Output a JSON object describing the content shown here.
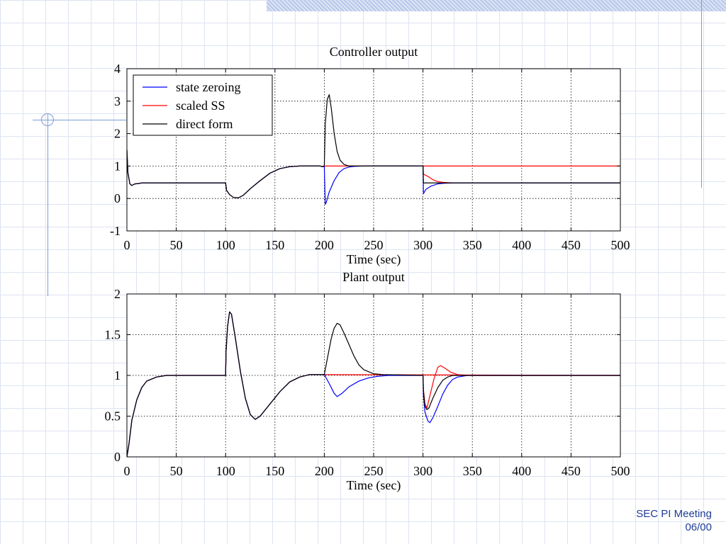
{
  "footer": {
    "line1": "SEC PI Meeting",
    "line2": "06/00"
  },
  "colors": {
    "state_zeroing": "#0000ff",
    "scaled_ss": "#ff0000",
    "direct_form": "#000000"
  },
  "chart_data": [
    {
      "type": "line",
      "title": "Controller output",
      "xlabel": "Time (sec)",
      "ylabel": "",
      "xlim": [
        0,
        500
      ],
      "ylim": [
        -1,
        4
      ],
      "xticks": [
        0,
        50,
        100,
        150,
        200,
        250,
        300,
        350,
        400,
        450,
        500
      ],
      "yticks": [
        -1,
        0,
        1,
        2,
        3,
        4
      ],
      "grid": true,
      "legend": {
        "position": "top-left"
      },
      "series": [
        {
          "name": "state zeroing",
          "color": "#0000ff",
          "points": [
            [
              0,
              1.5
            ],
            [
              1,
              0.8
            ],
            [
              3,
              0.45
            ],
            [
              5,
              0.4
            ],
            [
              8,
              0.45
            ],
            [
              12,
              0.46
            ],
            [
              15,
              0.48
            ],
            [
              100,
              0.48
            ],
            [
              101,
              0.25
            ],
            [
              104,
              0.12
            ],
            [
              108,
              0.03
            ],
            [
              113,
              0.02
            ],
            [
              118,
              0.1
            ],
            [
              125,
              0.3
            ],
            [
              135,
              0.55
            ],
            [
              145,
              0.78
            ],
            [
              155,
              0.92
            ],
            [
              165,
              0.98
            ],
            [
              175,
              1.0
            ],
            [
              196,
              1.0
            ],
            [
              198,
              0.98
            ],
            [
              200,
              0.99
            ],
            [
              201,
              -0.18
            ],
            [
              202,
              -0.12
            ],
            [
              205,
              0.2
            ],
            [
              210,
              0.55
            ],
            [
              215,
              0.8
            ],
            [
              220,
              0.92
            ],
            [
              225,
              0.97
            ],
            [
              230,
              0.99
            ],
            [
              240,
              1.0
            ],
            [
              300,
              1.0
            ],
            [
              300.5,
              0.15
            ],
            [
              303,
              0.28
            ],
            [
              308,
              0.38
            ],
            [
              315,
              0.45
            ],
            [
              322,
              0.47
            ],
            [
              335,
              0.48
            ],
            [
              500,
              0.48
            ]
          ]
        },
        {
          "name": "scaled SS",
          "color": "#ff0000",
          "points": [
            [
              0,
              1.5
            ],
            [
              1,
              0.8
            ],
            [
              3,
              0.45
            ],
            [
              5,
              0.4
            ],
            [
              8,
              0.45
            ],
            [
              12,
              0.46
            ],
            [
              15,
              0.48
            ],
            [
              100,
              0.48
            ],
            [
              101,
              0.25
            ],
            [
              104,
              0.12
            ],
            [
              108,
              0.03
            ],
            [
              113,
              0.02
            ],
            [
              118,
              0.1
            ],
            [
              125,
              0.3
            ],
            [
              135,
              0.55
            ],
            [
              145,
              0.78
            ],
            [
              155,
              0.92
            ],
            [
              165,
              0.98
            ],
            [
              175,
              1.0
            ],
            [
              196,
              1.0
            ],
            [
              198,
              0.98
            ],
            [
              200,
              0.99
            ],
            [
              201,
              1.0
            ],
            [
              500,
              1.0
            ]
          ]
        },
        {
          "name": "direct form",
          "color": "#000000",
          "points": [
            [
              0,
              1.5
            ],
            [
              1,
              0.8
            ],
            [
              3,
              0.45
            ],
            [
              5,
              0.4
            ],
            [
              8,
              0.45
            ],
            [
              12,
              0.46
            ],
            [
              15,
              0.48
            ],
            [
              100,
              0.48
            ],
            [
              101,
              0.25
            ],
            [
              104,
              0.12
            ],
            [
              108,
              0.03
            ],
            [
              113,
              0.02
            ],
            [
              118,
              0.1
            ],
            [
              125,
              0.3
            ],
            [
              135,
              0.55
            ],
            [
              145,
              0.78
            ],
            [
              155,
              0.92
            ],
            [
              165,
              0.98
            ],
            [
              175,
              1.0
            ],
            [
              196,
              1.0
            ],
            [
              198,
              0.98
            ],
            [
              200,
              1.0
            ],
            [
              201,
              2.3
            ],
            [
              203,
              3.05
            ],
            [
              205,
              3.2
            ],
            [
              207,
              2.8
            ],
            [
              210,
              2.0
            ],
            [
              213,
              1.45
            ],
            [
              216,
              1.18
            ],
            [
              220,
              1.05
            ],
            [
              225,
              1.0
            ],
            [
              300,
              1.0
            ],
            [
              300.5,
              0.48
            ],
            [
              500,
              0.48
            ]
          ]
        },
        {
          "name": "",
          "color": "#ff0000",
          "points": [
            [
              300,
              1.0
            ],
            [
              300.5,
              0.75
            ],
            [
              305,
              0.68
            ],
            [
              310,
              0.58
            ],
            [
              315,
              0.52
            ],
            [
              320,
              0.5
            ],
            [
              330,
              0.48
            ],
            [
              500,
              0.48
            ]
          ]
        }
      ]
    },
    {
      "type": "line",
      "title": "Plant output",
      "xlabel": "Time (sec)",
      "ylabel": "",
      "xlim": [
        0,
        500
      ],
      "ylim": [
        0,
        2
      ],
      "xticks": [
        0,
        50,
        100,
        150,
        200,
        250,
        300,
        350,
        400,
        450,
        500
      ],
      "yticks": [
        0,
        0.5,
        1,
        1.5,
        2
      ],
      "grid": true,
      "series": [
        {
          "name": "state zeroing",
          "color": "#0000ff",
          "points": [
            [
              0,
              0
            ],
            [
              2,
              0.15
            ],
            [
              5,
              0.45
            ],
            [
              10,
              0.7
            ],
            [
              15,
              0.85
            ],
            [
              20,
              0.93
            ],
            [
              30,
              0.98
            ],
            [
              40,
              1.0
            ],
            [
              100,
              1.0
            ],
            [
              100.5,
              1.3
            ],
            [
              102,
              1.6
            ],
            [
              104,
              1.78
            ],
            [
              106,
              1.75
            ],
            [
              110,
              1.45
            ],
            [
              115,
              1.05
            ],
            [
              120,
              0.72
            ],
            [
              125,
              0.52
            ],
            [
              130,
              0.46
            ],
            [
              135,
              0.5
            ],
            [
              145,
              0.65
            ],
            [
              155,
              0.8
            ],
            [
              165,
              0.92
            ],
            [
              175,
              0.98
            ],
            [
              185,
              1.01
            ],
            [
              200,
              1.01
            ],
            [
              205,
              0.9
            ],
            [
              210,
              0.78
            ],
            [
              213,
              0.74
            ],
            [
              218,
              0.78
            ],
            [
              225,
              0.86
            ],
            [
              235,
              0.93
            ],
            [
              245,
              0.97
            ],
            [
              255,
              0.99
            ],
            [
              265,
              1.0
            ],
            [
              300,
              1.0
            ],
            [
              300.5,
              0.75
            ],
            [
              302,
              0.55
            ],
            [
              305,
              0.44
            ],
            [
              307,
              0.42
            ],
            [
              310,
              0.48
            ],
            [
              315,
              0.62
            ],
            [
              320,
              0.77
            ],
            [
              325,
              0.88
            ],
            [
              330,
              0.95
            ],
            [
              335,
              0.98
            ],
            [
              340,
              0.99
            ],
            [
              345,
              1.0
            ],
            [
              500,
              1.0
            ]
          ]
        },
        {
          "name": "scaled SS",
          "color": "#ff0000",
          "points": [
            [
              0,
              0
            ],
            [
              2,
              0.15
            ],
            [
              5,
              0.45
            ],
            [
              10,
              0.7
            ],
            [
              15,
              0.85
            ],
            [
              20,
              0.93
            ],
            [
              30,
              0.98
            ],
            [
              40,
              1.0
            ],
            [
              100,
              1.0
            ],
            [
              100.5,
              1.3
            ],
            [
              102,
              1.6
            ],
            [
              104,
              1.78
            ],
            [
              106,
              1.75
            ],
            [
              110,
              1.45
            ],
            [
              115,
              1.05
            ],
            [
              120,
              0.72
            ],
            [
              125,
              0.52
            ],
            [
              130,
              0.46
            ],
            [
              135,
              0.5
            ],
            [
              145,
              0.65
            ],
            [
              155,
              0.8
            ],
            [
              165,
              0.92
            ],
            [
              175,
              0.98
            ],
            [
              185,
              1.01
            ],
            [
              200,
              1.01
            ],
            [
              500,
              1.0
            ]
          ]
        },
        {
          "name": "direct form",
          "color": "#000000",
          "points": [
            [
              0,
              0
            ],
            [
              2,
              0.15
            ],
            [
              5,
              0.45
            ],
            [
              10,
              0.7
            ],
            [
              15,
              0.85
            ],
            [
              20,
              0.93
            ],
            [
              30,
              0.98
            ],
            [
              40,
              1.0
            ],
            [
              100,
              1.0
            ],
            [
              100.5,
              1.3
            ],
            [
              102,
              1.6
            ],
            [
              104,
              1.78
            ],
            [
              106,
              1.75
            ],
            [
              110,
              1.45
            ],
            [
              115,
              1.05
            ],
            [
              120,
              0.72
            ],
            [
              125,
              0.52
            ],
            [
              130,
              0.46
            ],
            [
              135,
              0.5
            ],
            [
              145,
              0.65
            ],
            [
              155,
              0.8
            ],
            [
              165,
              0.92
            ],
            [
              175,
              0.98
            ],
            [
              185,
              1.01
            ],
            [
              200,
              1.01
            ],
            [
              203,
              1.2
            ],
            [
              207,
              1.45
            ],
            [
              210,
              1.58
            ],
            [
              213,
              1.64
            ],
            [
              216,
              1.62
            ],
            [
              220,
              1.52
            ],
            [
              225,
              1.38
            ],
            [
              230,
              1.24
            ],
            [
              235,
              1.13
            ],
            [
              240,
              1.07
            ],
            [
              250,
              1.02
            ],
            [
              260,
              1.01
            ],
            [
              300,
              1.0
            ],
            [
              300.5,
              0.8
            ],
            [
              302,
              0.62
            ],
            [
              304,
              0.58
            ],
            [
              306,
              0.6
            ],
            [
              310,
              0.72
            ],
            [
              315,
              0.85
            ],
            [
              320,
              0.94
            ],
            [
              325,
              0.98
            ],
            [
              330,
              1.0
            ],
            [
              500,
              1.0
            ]
          ]
        },
        {
          "name": "",
          "color": "#ff0000",
          "points": [
            [
              300,
              1.0
            ],
            [
              300.5,
              0.82
            ],
            [
              302,
              0.65
            ],
            [
              304,
              0.6
            ],
            [
              307,
              0.75
            ],
            [
              311,
              0.95
            ],
            [
              315,
              1.1
            ],
            [
              318,
              1.12
            ],
            [
              322,
              1.09
            ],
            [
              328,
              1.04
            ],
            [
              335,
              1.01
            ],
            [
              345,
              1.0
            ],
            [
              500,
              1.0
            ]
          ]
        }
      ]
    }
  ]
}
